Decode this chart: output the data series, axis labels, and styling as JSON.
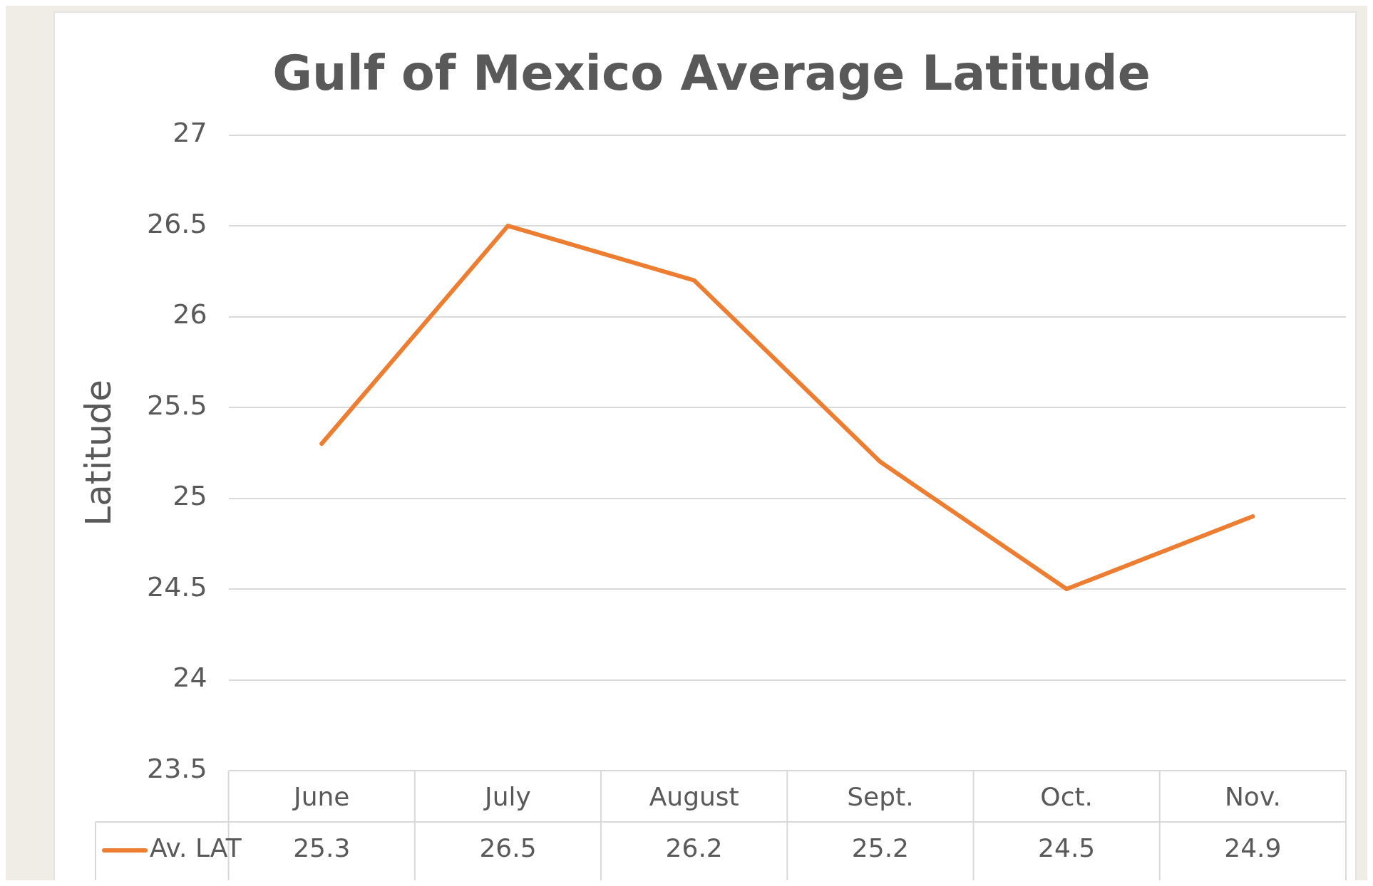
{
  "chart_data": {
    "type": "line",
    "title": "Gulf of Mexico Average Latitude",
    "ylabel": "Latitude",
    "categories": [
      "June",
      "July",
      "August",
      "Sept.",
      "Oct.",
      "Nov."
    ],
    "series": [
      {
        "name": "Av. LAT",
        "color": "#ed7d31",
        "values": [
          25.3,
          26.5,
          26.2,
          25.2,
          24.5,
          24.9
        ]
      }
    ],
    "ylim": [
      23.5,
      27
    ],
    "yticks": [
      23.5,
      24,
      24.5,
      25,
      25.5,
      26,
      26.5,
      27
    ],
    "grid": "y",
    "legend": "bottom left",
    "marker": "none",
    "line_style": "solid",
    "data_labels": true
  }
}
